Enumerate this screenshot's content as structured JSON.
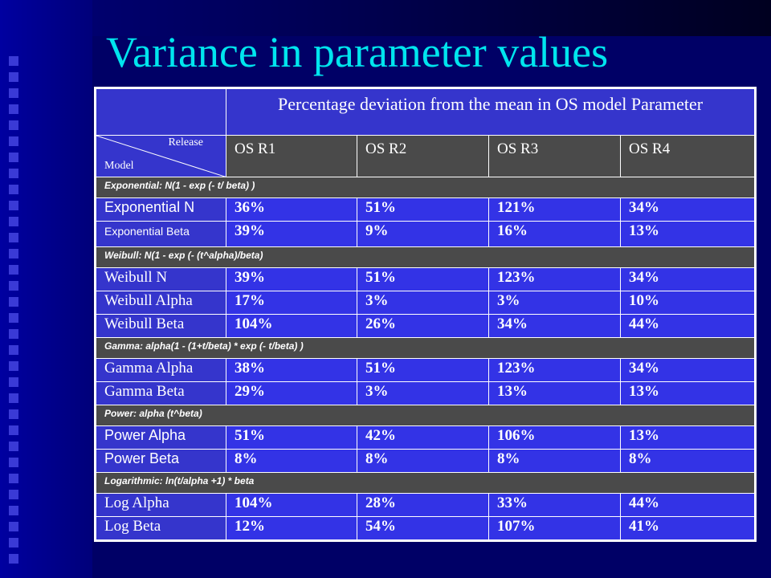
{
  "title": "Variance in parameter values",
  "table": {
    "header_title": "Percentage deviation from the mean in OS model Parameter",
    "corner_release": "Release",
    "corner_model": "Model",
    "columns": [
      "OS R1",
      "OS R2",
      "OS R3",
      "OS R4"
    ],
    "sections": [
      {
        "title": "Exponential: N(1 - exp (- t/ beta) )",
        "rows": [
          {
            "label": "Exponential N",
            "values": [
              "36%",
              "51%",
              "121%",
              "34%"
            ]
          },
          {
            "label": "Exponential Beta",
            "values": [
              "39%",
              "9%",
              "16%",
              "13%"
            ]
          }
        ]
      },
      {
        "title": "Weibull: N(1 - exp (- (t^alpha)/beta)",
        "rows": [
          {
            "label": "Weibull N",
            "values": [
              "39%",
              "51%",
              "123%",
              "34%"
            ]
          },
          {
            "label": "Weibull Alpha",
            "values": [
              "17%",
              "3%",
              "3%",
              "10%"
            ]
          },
          {
            "label": "Weibull Beta",
            "values": [
              "104%",
              "26%",
              "34%",
              "44%"
            ]
          }
        ]
      },
      {
        "title": "Gamma: alpha(1 - (1+t/beta) * exp (- t/beta) )",
        "rows": [
          {
            "label": "Gamma Alpha",
            "values": [
              "38%",
              "51%",
              "123%",
              "34%"
            ]
          },
          {
            "label": "Gamma Beta",
            "values": [
              "29%",
              "3%",
              "13%",
              "13%"
            ]
          }
        ]
      },
      {
        "title": "Power: alpha (t^beta)",
        "rows": [
          {
            "label": "Power Alpha",
            "values": [
              "51%",
              "42%",
              "106%",
              "13%"
            ]
          },
          {
            "label": "Power Beta",
            "values": [
              "8%",
              "8%",
              "8%",
              "8%"
            ]
          }
        ]
      },
      {
        "title": "Logarithmic: ln(t/alpha +1) * beta",
        "rows": [
          {
            "label": "Log Alpha",
            "values": [
              "104%",
              "28%",
              "33%",
              "44%"
            ]
          },
          {
            "label": "Log Beta",
            "values": [
              "12%",
              "54%",
              "107%",
              "41%"
            ]
          }
        ]
      }
    ]
  }
}
